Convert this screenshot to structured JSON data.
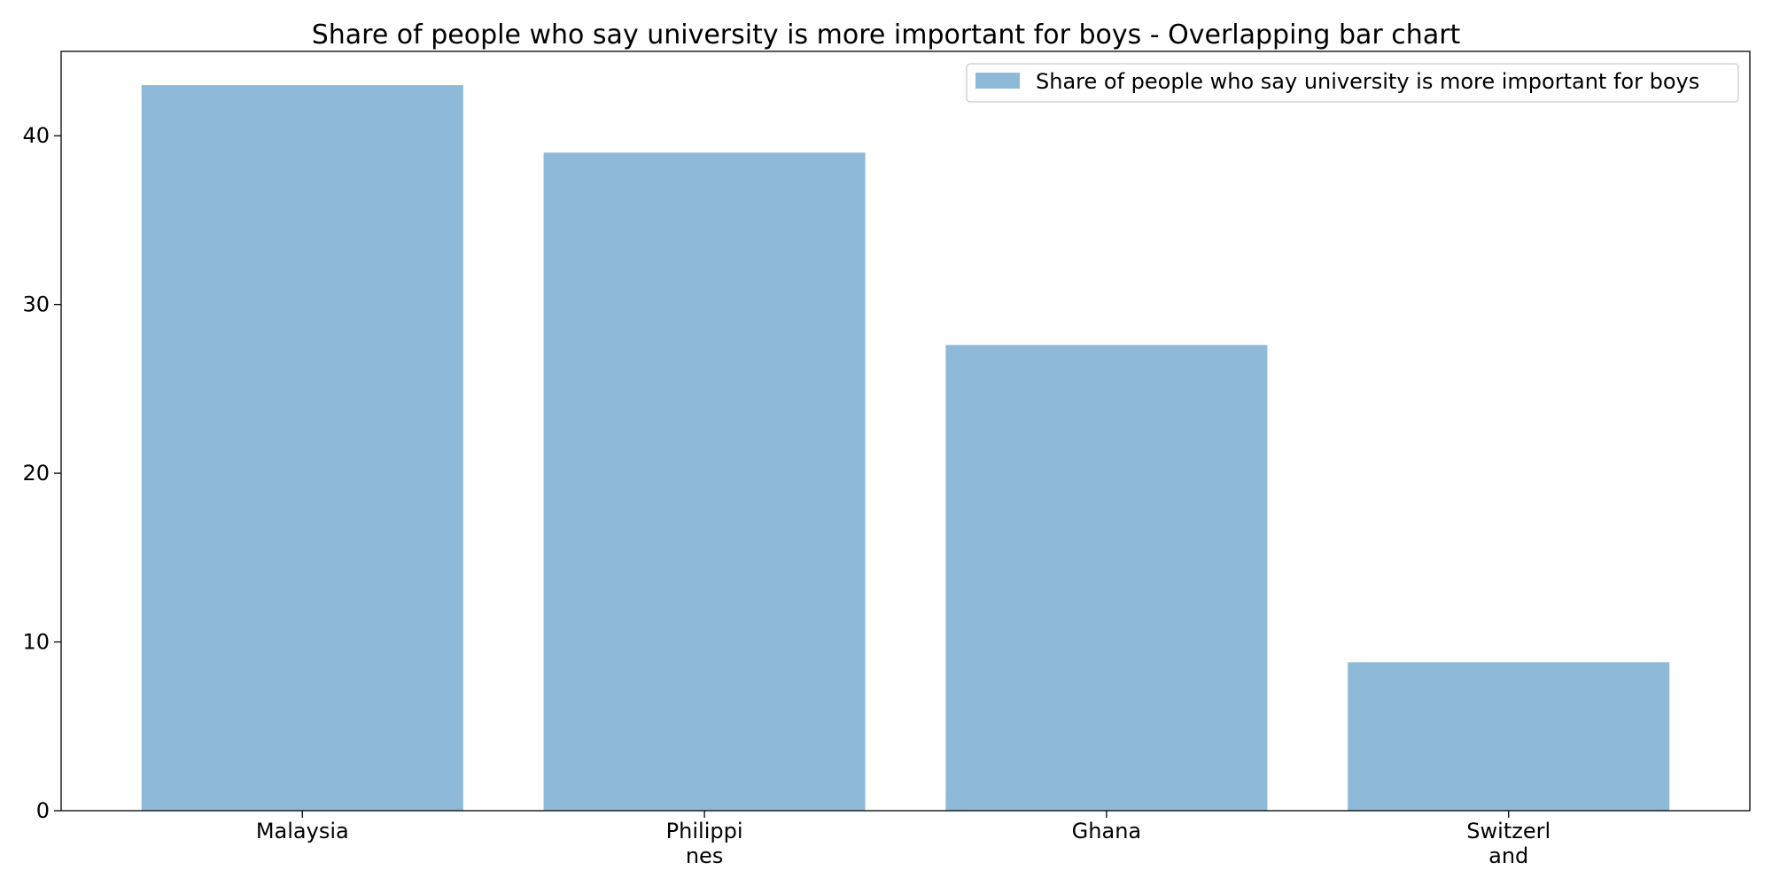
{
  "chart_data": {
    "type": "bar",
    "title": "Share of people who say university is more important for boys - Overlapping bar chart",
    "xlabel": "",
    "ylabel": "",
    "categories": [
      [
        "Malaysia"
      ],
      [
        "Philippi",
        "nes"
      ],
      [
        "Ghana"
      ],
      [
        "Switzerl",
        "and"
      ]
    ],
    "series": [
      {
        "name": "Share of people who say university is more important for boys",
        "values": [
          43.0,
          39.0,
          27.6,
          8.8
        ],
        "color": "#8fb9d9"
      }
    ],
    "ylim": [
      0,
      45
    ],
    "yticks": [
      0,
      10,
      20,
      30,
      40
    ],
    "grid": false,
    "legend": "top-right"
  }
}
